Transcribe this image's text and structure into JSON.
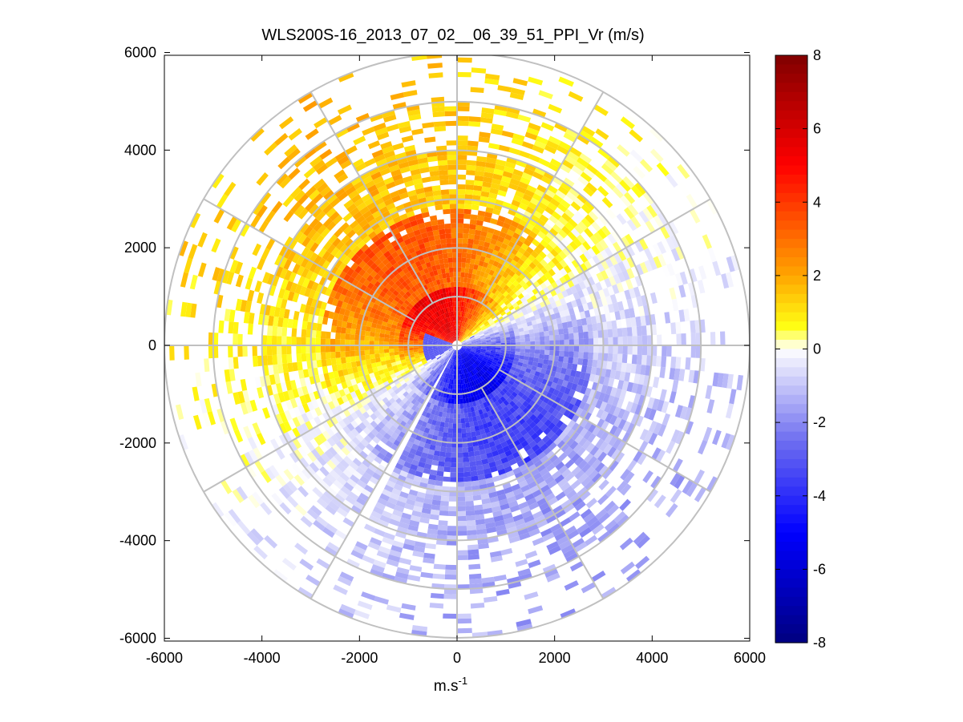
{
  "chart_data": {
    "type": "heatmap",
    "subtype": "polar-ppi",
    "title": "WLS200S-16_2013_07_02__06_39_51_PPI_Vr (m/s)",
    "xlabel_base": "m.s",
    "xlabel_sup": "-1",
    "ylabel": "",
    "xlim": [
      -6000,
      6000
    ],
    "ylim": [
      -6000,
      6000
    ],
    "x_ticks": [
      -6000,
      -4000,
      -2000,
      0,
      2000,
      4000,
      6000
    ],
    "y_ticks": [
      6000,
      4000,
      2000,
      0,
      -2000,
      -4000,
      -6000
    ],
    "x_tick_labels": [
      "-6000",
      "-4000",
      "-2000",
      "0",
      "2000",
      "4000",
      "6000"
    ],
    "y_tick_labels": [
      "6000",
      "4000",
      "2000",
      "0",
      "-2000",
      "-4000",
      "-6000"
    ],
    "colorbar": {
      "range": [
        -8,
        8
      ],
      "ticks": [
        8,
        6,
        4,
        2,
        0,
        -2,
        -4,
        -6,
        -8
      ],
      "tick_labels": [
        "8",
        "6",
        "4",
        "2",
        "0",
        "-2",
        "-4",
        "-6",
        "-8"
      ],
      "colormap": "blue-white-red"
    },
    "polar_grid": {
      "ring_ranges": [
        1000,
        2000,
        3000,
        4000,
        5000,
        6000
      ],
      "spoke_angles_deg": [
        0,
        30,
        60,
        90,
        120,
        150,
        180,
        210,
        240,
        270,
        300,
        330
      ],
      "max_range": 6000
    },
    "radial_velocity_pattern": {
      "description": "Dipole PPI pattern: positive radial velocity (away) sector centered toward north/north-west, negative (toward) sector south/south-east",
      "positive_peak_ms": 5.5,
      "negative_peak_ms": -5.0,
      "positive_direction_deg": 330,
      "negative_direction_deg": 150,
      "blind_sector_azimuths_deg": [
        0,
        208
      ]
    },
    "colors": {
      "grid": "#c0c0c0",
      "axis": "#000000",
      "background": "#ffffff"
    }
  }
}
